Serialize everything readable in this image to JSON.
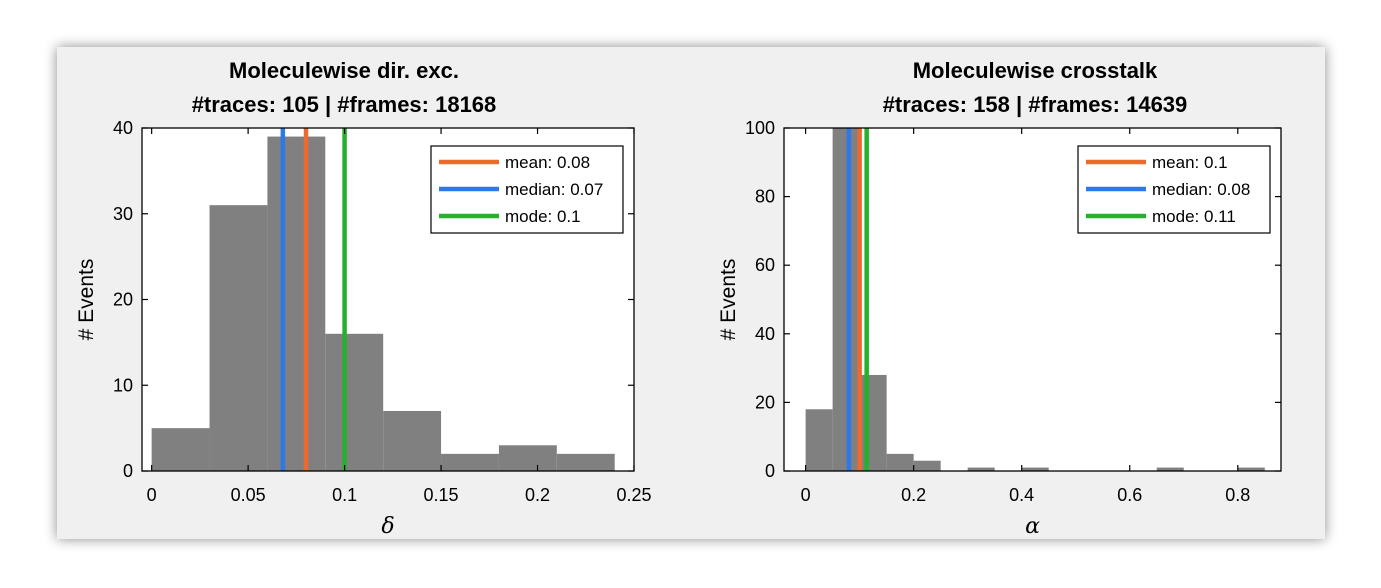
{
  "colors": {
    "bar": "#808080",
    "mean": "#ed6a2e",
    "median": "#2e78e8",
    "mode": "#27b02e",
    "panel_bg": "#f0f0f0",
    "axes_bg": "#ffffff"
  },
  "chart_data": [
    {
      "type": "bar",
      "title": "Moleculewise dir. exc.",
      "subtitle": "#traces: 105 | #frames: 18168",
      "xlabel": "δ",
      "ylabel": "# Events",
      "xlim": [
        -0.005,
        0.25
      ],
      "ylim": [
        0,
        40
      ],
      "xticks": [
        0,
        0.05,
        0.1,
        0.15,
        0.2,
        0.25
      ],
      "xtick_labels": [
        "0",
        "0.05",
        "0.1",
        "0.15",
        "0.2",
        "0.25"
      ],
      "yticks": [
        0,
        10,
        20,
        30,
        40
      ],
      "ytick_labels": [
        "0",
        "10",
        "20",
        "30",
        "40"
      ],
      "bin_edges": [
        0,
        0.03,
        0.06,
        0.09,
        0.12,
        0.15,
        0.18,
        0.21,
        0.24
      ],
      "values": [
        5,
        31,
        39,
        16,
        7,
        2,
        3,
        2
      ],
      "bar_width": 0.03,
      "lines": [
        {
          "name": "mean",
          "label": "mean: 0.08",
          "value": 0.08,
          "color": "#ed6a2e"
        },
        {
          "name": "median",
          "label": "median: 0.07",
          "value": 0.068,
          "color": "#2e78e8"
        },
        {
          "name": "mode",
          "label": "mode: 0.1",
          "value": 0.1,
          "color": "#27b02e"
        }
      ],
      "legend_position": "top-right"
    },
    {
      "type": "bar",
      "title": "Moleculewise crosstalk",
      "subtitle": "#traces: 158 | #frames: 14639",
      "xlabel": "α",
      "ylabel": "# Events",
      "xlim": [
        -0.04,
        0.88
      ],
      "ylim": [
        0,
        100
      ],
      "xticks": [
        0,
        0.2,
        0.4,
        0.6,
        0.8
      ],
      "xtick_labels": [
        "0",
        "0.2",
        "0.4",
        "0.6",
        "0.8"
      ],
      "yticks": [
        0,
        20,
        40,
        60,
        80,
        100
      ],
      "ytick_labels": [
        "0",
        "20",
        "40",
        "60",
        "80",
        "100"
      ],
      "bin_edges": [
        0,
        0.05,
        0.1,
        0.15,
        0.2,
        0.25,
        0.3,
        0.35,
        0.4,
        0.45,
        0.5,
        0.55,
        0.6,
        0.65,
        0.7,
        0.75,
        0.8,
        0.85
      ],
      "values": [
        18,
        100,
        28,
        5,
        3,
        0,
        1,
        0,
        1,
        0,
        0,
        0,
        0,
        1,
        0,
        0,
        1
      ],
      "bar_width": 0.05,
      "lines": [
        {
          "name": "mean",
          "label": "mean: 0.1",
          "value": 0.1,
          "color": "#ed6a2e"
        },
        {
          "name": "median",
          "label": "median: 0.08",
          "value": 0.08,
          "color": "#2e78e8"
        },
        {
          "name": "mode",
          "label": "mode: 0.11",
          "value": 0.113,
          "color": "#27b02e"
        }
      ],
      "legend_position": "top-right"
    }
  ]
}
